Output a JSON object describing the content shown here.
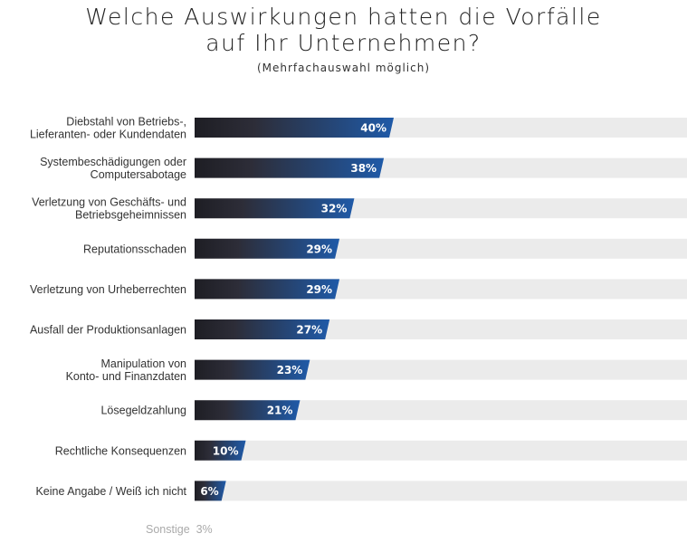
{
  "chart_data": {
    "type": "bar",
    "orientation": "horizontal",
    "title": "Welche Auswirkungen hatten die Vorfälle auf Ihr Unternehmen?",
    "title_lines": [
      "Welche Auswirkungen hatten die Vorfälle",
      "auf Ihr Unternehmen?"
    ],
    "subtitle": "(Mehrfachauswahl möglich)",
    "categories": [
      [
        "Diebstahl von Betriebs-,",
        "Lieferanten- oder Kundendaten"
      ],
      [
        "Systembeschädigungen oder",
        "Computersabotage"
      ],
      [
        "Verletzung von Geschäfts- und",
        "Betriebsgeheimnissen"
      ],
      [
        "Reputationsschaden"
      ],
      [
        "Verletzung von Urheberrechten"
      ],
      [
        "Ausfall der Produktionsanlagen"
      ],
      [
        "Manipulation von",
        "Konto- und Finanzdaten"
      ],
      [
        "Lösegeldzahlung"
      ],
      [
        "Rechtliche Konsequenzen"
      ],
      [
        "Keine Angabe / Weiß ich nicht"
      ]
    ],
    "values": [
      40,
      38,
      32,
      29,
      29,
      27,
      23,
      21,
      10,
      6
    ],
    "value_labels": [
      "40%",
      "38%",
      "32%",
      "29%",
      "29%",
      "27%",
      "23%",
      "21%",
      "10%",
      "6%"
    ],
    "xlim": [
      0,
      100
    ],
    "grid": false,
    "footnote": {
      "label": "Sonstige",
      "value": "3%"
    },
    "colors": {
      "bar_start": "#1e1e24",
      "bar_end": "#1f5aa8",
      "track": "#ebebeb"
    }
  }
}
